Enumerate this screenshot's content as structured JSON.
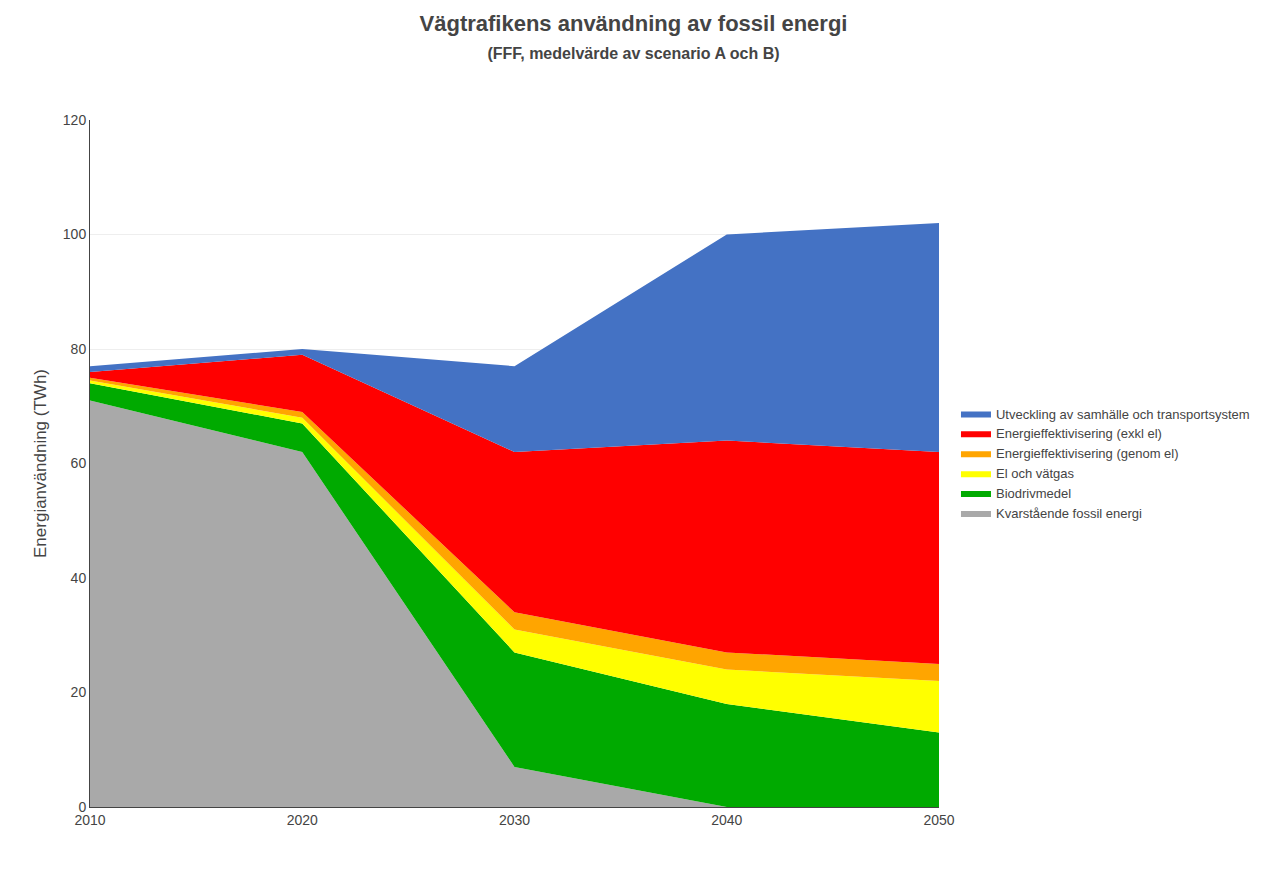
{
  "chart_data": {
    "type": "area",
    "stacked": true,
    "title": "Vägtrafikens användning av fossil energi",
    "subtitle": "(FFF, medelvärde av scenario A och B)",
    "ylabel": "Energianvändning (TWh)",
    "x": [
      2010,
      2020,
      2030,
      2040,
      2050
    ],
    "series": [
      {
        "name": "Kvarstående fossil energi",
        "color": "#A9A9A9",
        "values": [
          71,
          62,
          7,
          0,
          0
        ]
      },
      {
        "name": "Biodrivmedel",
        "color": "#00AA00",
        "values": [
          3,
          5,
          20,
          18,
          13
        ]
      },
      {
        "name": "El och vätgas",
        "color": "#FFFF00",
        "values": [
          0.5,
          1,
          4,
          6,
          9
        ]
      },
      {
        "name": "Energieffektivisering (genom el)",
        "color": "#FFA500",
        "values": [
          0.5,
          1,
          3,
          3,
          3
        ]
      },
      {
        "name": "Energieffektivisering (exkl el)",
        "color": "#FF0000",
        "values": [
          1,
          10,
          28,
          37,
          37
        ]
      },
      {
        "name": "Utveckling av samhälle och transportsystem",
        "color": "#4472C4",
        "values": [
          1,
          1,
          15,
          36,
          40
        ]
      }
    ],
    "xlim": [
      2010,
      2050
    ],
    "xticks": [
      2010,
      2020,
      2030,
      2040,
      2050
    ],
    "ylim": [
      0,
      120
    ],
    "yticks": [
      0,
      20,
      40,
      60,
      80,
      100,
      120
    ],
    "grid": true,
    "legend": "right"
  }
}
